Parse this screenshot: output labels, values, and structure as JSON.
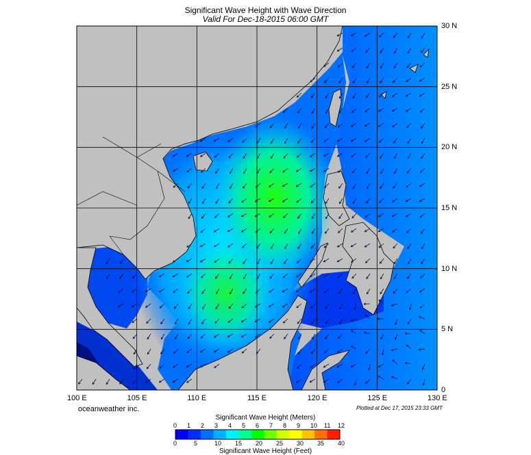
{
  "title": "Significant Wave Height with Wave Direction",
  "subtitle": "Valid For Dec-18-2015 06:00 GMT",
  "credit": "oceanweather inc.",
  "plotted": "Plotted at Dec 17, 2015 23:33 GMT",
  "lon_labels": [
    "100 E",
    "105 E",
    "110 E",
    "115 E",
    "120 E",
    "125 E",
    "130 E"
  ],
  "lat_labels": [
    "30 N",
    "25 N",
    "20 N",
    "15 N",
    "10 N",
    "5 N",
    "0"
  ],
  "colorbar": {
    "meters_title": "Significant Wave Height (Meters)",
    "feet_title": "Significant Wave Height (Feet)",
    "meters_ticks": [
      "0",
      "1",
      "2",
      "3",
      "4",
      "5",
      "6",
      "7",
      "8",
      "9",
      "10",
      "11",
      "12"
    ],
    "feet_ticks": [
      "0",
      "5",
      "10",
      "15",
      "20",
      "25",
      "30",
      "35",
      "40"
    ],
    "colors": [
      "#0000ff",
      "#0030ff",
      "#0070ff",
      "#00b0ff",
      "#00f0ff",
      "#00ff90",
      "#00ff00",
      "#70ff00",
      "#d0ff00",
      "#ffff00",
      "#ffc000",
      "#ff7000",
      "#ff2000"
    ]
  },
  "colors": {
    "land": "#c0c0c0",
    "sea_low": "#0040ff",
    "sea_mid": "#00e0ff",
    "sea_high": "#20f040"
  }
}
